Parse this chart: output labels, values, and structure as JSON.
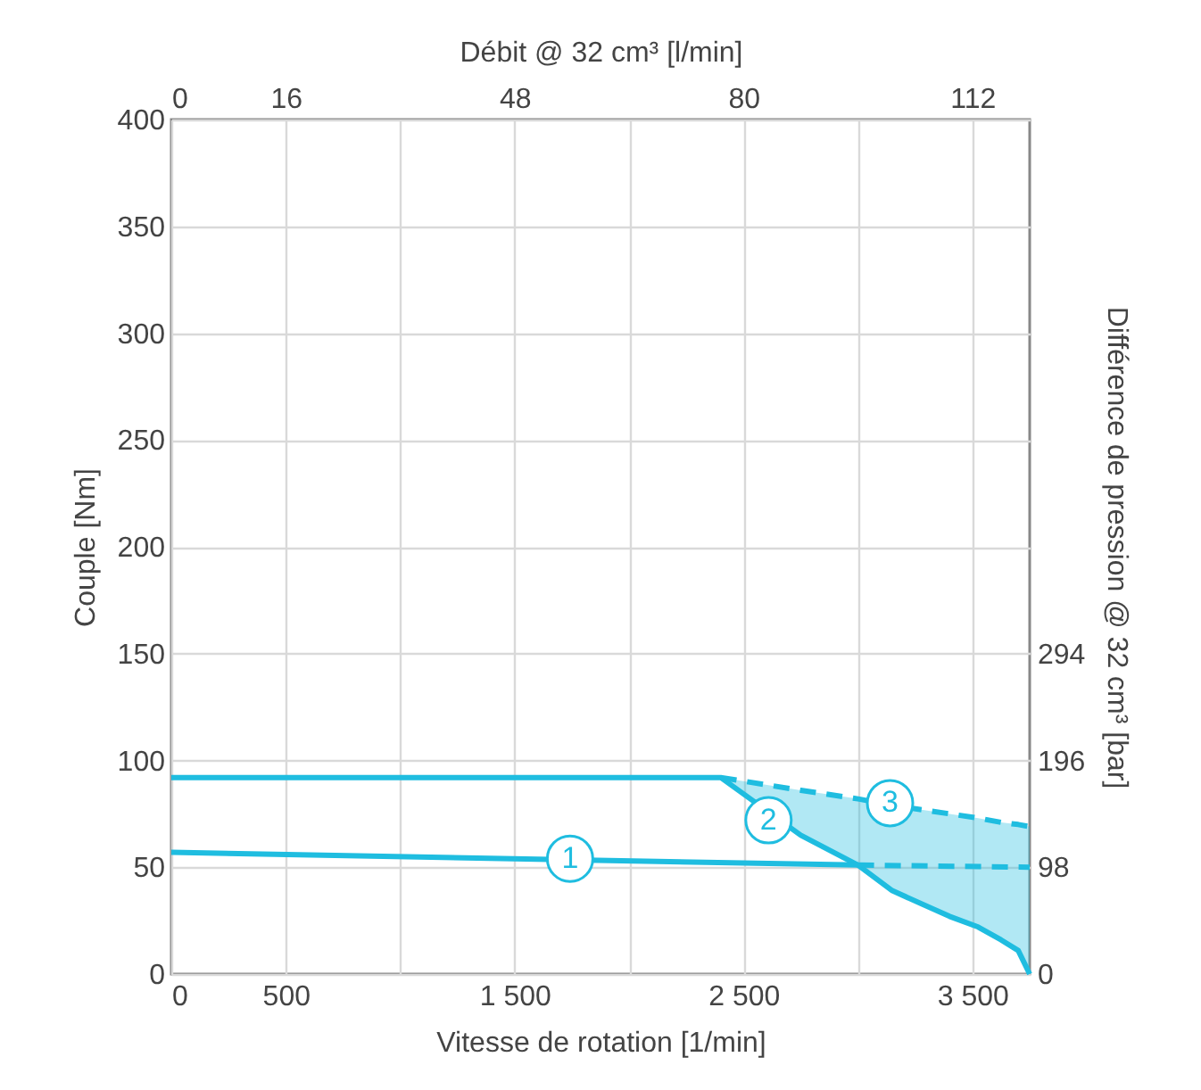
{
  "chart_data": {
    "type": "line",
    "xlabel": "Vitesse de rotation [1/min]",
    "ylabel": "Couple [Nm]",
    "y2label": "Différence de pression @ 32 cm³ [bar]",
    "x2label": "Débit @ 32 cm³ [l/min]",
    "xlim": [
      0,
      3750
    ],
    "xticks": [
      0,
      500,
      {
        "value": 1000,
        "label": null
      },
      {
        "value": 1500,
        "label": "1 500"
      },
      {
        "value": 2000,
        "label": null
      },
      {
        "value": 2500,
        "label": "2 500"
      },
      {
        "value": 3000,
        "label": null
      },
      {
        "value": 3500,
        "label": "3 500"
      }
    ],
    "x2lim": [
      0,
      120
    ],
    "x2ticks": [
      0,
      16,
      48,
      80,
      112
    ],
    "ylim": [
      0,
      400
    ],
    "yticks": [
      0,
      50,
      100,
      150,
      200,
      250,
      300,
      350,
      400
    ],
    "y2lim": [
      0,
      784
    ],
    "y2ticks": [
      0,
      98,
      196,
      294
    ],
    "grid": true,
    "series": [
      {
        "color": "#1fbde0",
        "line_style": "solid",
        "x": [
          0,
          2400,
          2750,
          3000,
          3150,
          3400,
          3525,
          3625,
          3700,
          3750
        ],
        "values": [
          92,
          92,
          65,
          51,
          39,
          27,
          22,
          16,
          11,
          0
        ]
      },
      {
        "color": "#1fbde0",
        "line_style": "dashed",
        "x": [
          2400,
          2750,
          3000,
          3150,
          3400,
          3525,
          3625,
          3700,
          3750
        ],
        "values": [
          92,
          86,
          82,
          79,
          75,
          73,
          71,
          70,
          69
        ],
        "lower": [
          92,
          65,
          51,
          39,
          27,
          22,
          16,
          11,
          0
        ],
        "upper": [
          92,
          86,
          82,
          79,
          75,
          73,
          71,
          70,
          69
        ]
      },
      {
        "color": "#1fbde0",
        "line_style": "solid",
        "x": [
          0,
          3000
        ],
        "values": [
          57,
          51
        ]
      },
      {
        "color": "#1fbde0",
        "line_style": "dashed",
        "x": [
          3000,
          3750
        ],
        "values": [
          51,
          50
        ]
      }
    ],
    "annotations": [
      {
        "text": "1",
        "x": 1742,
        "y": 54
      },
      {
        "text": "2",
        "x": 2609,
        "y": 72
      },
      {
        "text": "3",
        "x": 3140,
        "y": 80
      }
    ]
  }
}
